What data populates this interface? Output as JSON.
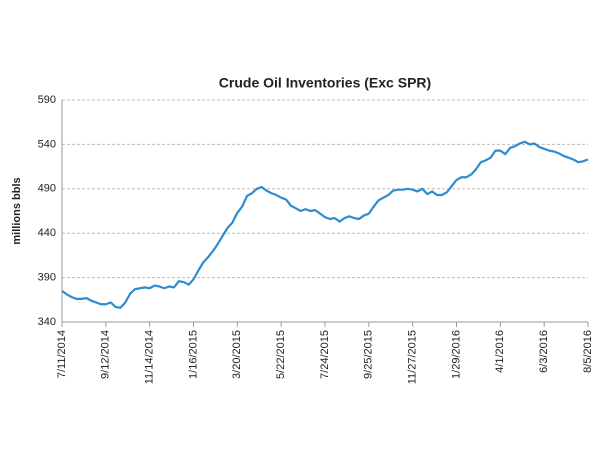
{
  "chart_data": {
    "type": "line",
    "title": "Crude Oil Inventories (Exc SPR)",
    "y_label": "millions bbls",
    "categories": [
      "7/11/2014",
      null,
      null,
      null,
      null,
      null,
      null,
      null,
      null,
      "9/12/2014",
      null,
      null,
      null,
      null,
      null,
      null,
      null,
      null,
      "11/14/2014",
      null,
      null,
      null,
      null,
      null,
      null,
      null,
      null,
      "1/16/2015",
      null,
      null,
      null,
      null,
      null,
      null,
      null,
      null,
      "3/20/2015",
      null,
      null,
      null,
      null,
      null,
      null,
      null,
      null,
      "5/22/2015",
      null,
      null,
      null,
      null,
      null,
      null,
      null,
      null,
      "7/24/2015",
      null,
      null,
      null,
      null,
      null,
      null,
      null,
      null,
      "9/25/2015",
      null,
      null,
      null,
      null,
      null,
      null,
      null,
      null,
      "11/27/2015",
      null,
      null,
      null,
      null,
      null,
      null,
      null,
      null,
      "1/29/2016",
      null,
      null,
      null,
      null,
      null,
      null,
      null,
      null,
      "4/1/2016",
      null,
      null,
      null,
      null,
      null,
      null,
      null,
      null,
      "6/3/2016",
      null,
      null,
      null,
      null,
      null,
      null,
      null,
      null,
      "8/5/2016"
    ],
    "values": [
      375,
      371,
      368,
      366,
      366,
      367,
      364,
      362,
      360,
      360,
      362,
      357,
      356,
      362,
      372,
      377,
      378,
      379,
      378,
      381,
      380,
      378,
      380,
      379,
      386,
      385,
      382,
      388,
      398,
      407,
      413,
      420,
      428,
      437,
      446,
      452,
      463,
      470,
      482,
      485,
      490,
      492,
      488,
      485,
      483,
      480,
      478,
      471,
      468,
      465,
      467,
      465,
      466,
      462,
      458,
      456,
      457,
      453,
      457,
      459,
      457,
      456,
      460,
      462,
      470,
      477,
      480,
      483,
      488,
      489,
      489,
      490,
      489,
      487,
      490,
      484,
      487,
      483,
      483,
      486,
      493,
      500,
      503,
      503,
      506,
      512,
      520,
      522,
      525,
      533,
      533,
      529,
      536,
      538,
      541,
      543,
      540,
      541,
      537,
      535,
      533,
      532,
      530,
      527,
      525,
      523,
      520,
      521,
      523
    ],
    "color": "#2e8ccf",
    "ylim": [
      340,
      590
    ],
    "yticks": [
      340,
      390,
      440,
      490,
      540,
      590
    ],
    "grid": true
  }
}
